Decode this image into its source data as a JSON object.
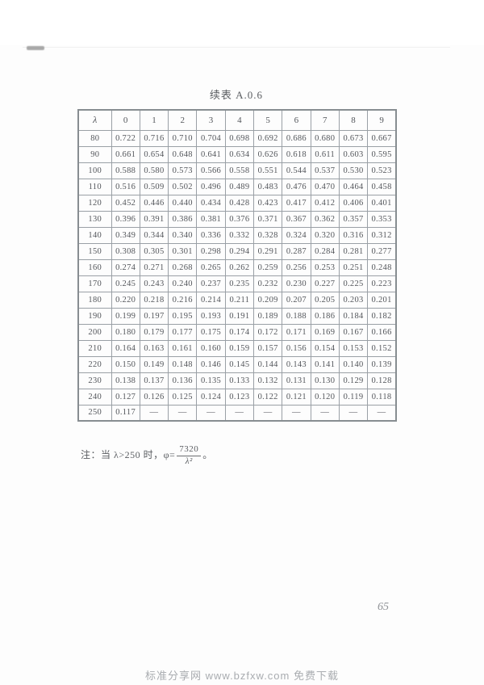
{
  "page": {
    "title": "续表 A.0.6",
    "page_number": "65",
    "watermark": "标准分享网 www.bzfxw.com 免费下载"
  },
  "note": {
    "prefix": "注：当 λ>250 时，φ=",
    "numerator": "7320",
    "denominator": "λ²",
    "suffix": "。"
  },
  "chart_data": {
    "type": "table",
    "title": "续表 A.0.6",
    "col_headers": [
      "λ",
      "0",
      "1",
      "2",
      "3",
      "4",
      "5",
      "6",
      "7",
      "8",
      "9"
    ],
    "rows": [
      {
        "lambda": "80",
        "values": [
          "0.722",
          "0.716",
          "0.710",
          "0.704",
          "0.698",
          "0.692",
          "0.686",
          "0.680",
          "0.673",
          "0.667"
        ]
      },
      {
        "lambda": "90",
        "values": [
          "0.661",
          "0.654",
          "0.648",
          "0.641",
          "0.634",
          "0.626",
          "0.618",
          "0.611",
          "0.603",
          "0.595"
        ]
      },
      {
        "lambda": "100",
        "values": [
          "0.588",
          "0.580",
          "0.573",
          "0.566",
          "0.558",
          "0.551",
          "0.544",
          "0.537",
          "0.530",
          "0.523"
        ]
      },
      {
        "lambda": "110",
        "values": [
          "0.516",
          "0.509",
          "0.502",
          "0.496",
          "0.489",
          "0.483",
          "0.476",
          "0.470",
          "0.464",
          "0.458"
        ]
      },
      {
        "lambda": "120",
        "values": [
          "0.452",
          "0.446",
          "0.440",
          "0.434",
          "0.428",
          "0.423",
          "0.417",
          "0.412",
          "0.406",
          "0.401"
        ]
      },
      {
        "lambda": "130",
        "values": [
          "0.396",
          "0.391",
          "0.386",
          "0.381",
          "0.376",
          "0.371",
          "0.367",
          "0.362",
          "0.357",
          "0.353"
        ]
      },
      {
        "lambda": "140",
        "values": [
          "0.349",
          "0.344",
          "0.340",
          "0.336",
          "0.332",
          "0.328",
          "0.324",
          "0.320",
          "0.316",
          "0.312"
        ]
      },
      {
        "lambda": "150",
        "values": [
          "0.308",
          "0.305",
          "0.301",
          "0.298",
          "0.294",
          "0.291",
          "0.287",
          "0.284",
          "0.281",
          "0.277"
        ]
      },
      {
        "lambda": "160",
        "values": [
          "0.274",
          "0.271",
          "0.268",
          "0.265",
          "0.262",
          "0.259",
          "0.256",
          "0.253",
          "0.251",
          "0.248"
        ]
      },
      {
        "lambda": "170",
        "values": [
          "0.245",
          "0.243",
          "0.240",
          "0.237",
          "0.235",
          "0.232",
          "0.230",
          "0.227",
          "0.225",
          "0.223"
        ]
      },
      {
        "lambda": "180",
        "values": [
          "0.220",
          "0.218",
          "0.216",
          "0.214",
          "0.211",
          "0.209",
          "0.207",
          "0.205",
          "0.203",
          "0.201"
        ]
      },
      {
        "lambda": "190",
        "values": [
          "0.199",
          "0.197",
          "0.195",
          "0.193",
          "0.191",
          "0.189",
          "0.188",
          "0.186",
          "0.184",
          "0.182"
        ]
      },
      {
        "lambda": "200",
        "values": [
          "0.180",
          "0.179",
          "0.177",
          "0.175",
          "0.174",
          "0.172",
          "0.171",
          "0.169",
          "0.167",
          "0.166"
        ]
      },
      {
        "lambda": "210",
        "values": [
          "0.164",
          "0.163",
          "0.161",
          "0.160",
          "0.159",
          "0.157",
          "0.156",
          "0.154",
          "0.153",
          "0.152"
        ]
      },
      {
        "lambda": "220",
        "values": [
          "0.150",
          "0.149",
          "0.148",
          "0.146",
          "0.145",
          "0.144",
          "0.143",
          "0.141",
          "0.140",
          "0.139"
        ]
      },
      {
        "lambda": "230",
        "values": [
          "0.138",
          "0.137",
          "0.136",
          "0.135",
          "0.133",
          "0.132",
          "0.131",
          "0.130",
          "0.129",
          "0.128"
        ]
      },
      {
        "lambda": "240",
        "values": [
          "0.127",
          "0.126",
          "0.125",
          "0.124",
          "0.123",
          "0.122",
          "0.121",
          "0.120",
          "0.119",
          "0.118"
        ]
      },
      {
        "lambda": "250",
        "values": [
          "0.117",
          "—",
          "—",
          "—",
          "—",
          "—",
          "—",
          "—",
          "—",
          "—"
        ]
      }
    ]
  }
}
